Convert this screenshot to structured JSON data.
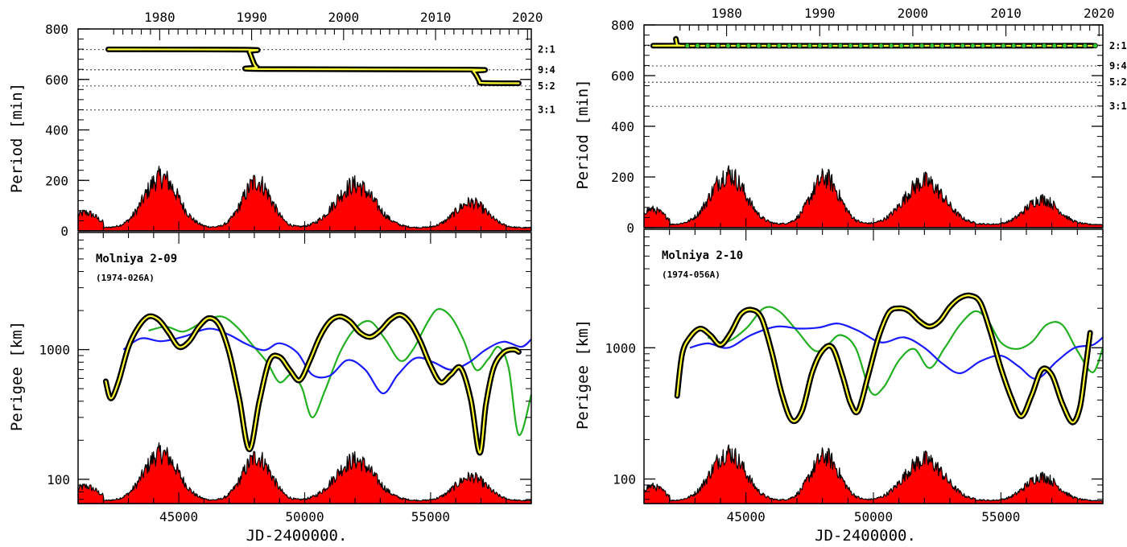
{
  "colors": {
    "solar_fill": "#ff0000",
    "orbit_outline": "#000000",
    "orbit_core": "#ffff33",
    "green_model": "#22b022",
    "blue_model": "#1a1aff",
    "green_marker": "#33cc33"
  },
  "chart_data": [
    {
      "id": "left",
      "type": "line",
      "satellite_name": "Molniya 2-09",
      "cospar_id": "(1974-026A)",
      "x_label": "JD-2400000.",
      "x_range": [
        41000,
        59000
      ],
      "x_ticks": [
        45000,
        50000,
        55000
      ],
      "year_ticks": [
        {
          "label": "1980",
          "jd": 44240
        },
        {
          "label": "1990",
          "jd": 47893
        },
        {
          "label": "2000",
          "jd": 51545
        },
        {
          "label": "2010",
          "jd": 55198
        },
        {
          "label": "2020",
          "jd": 58850
        }
      ],
      "period_panel": {
        "ylabel": "Period [min]",
        "ylim": [
          0,
          800
        ],
        "y_ticks": [
          0,
          200,
          400,
          600,
          800
        ],
        "resonances": [
          {
            "label": "2:1",
            "value": 718
          },
          {
            "label": "9:4",
            "value": 638
          },
          {
            "label": "5:2",
            "value": 574
          },
          {
            "label": "3:1",
            "value": 479
          }
        ],
        "series": [
          {
            "x": [
              42200,
              47700,
              47800,
              47900,
              48000,
              48100,
              48300,
              56500,
              56700,
              56850,
              56950,
              57100,
              58500
            ],
            "y": [
              719,
              718,
              710,
              685,
              660,
              648,
              641,
              639,
              632,
              610,
              592,
              586,
              585
            ]
          }
        ],
        "markers": null
      },
      "perigee_panel": {
        "ylabel": "Perigee [km]",
        "log_scale": true,
        "ylim": [
          65,
          8000
        ],
        "y_ticks": [
          100,
          1000
        ],
        "main_series": {
          "x": [
            42100,
            42300,
            42600,
            43000,
            43400,
            43800,
            44200,
            44600,
            45000,
            45400,
            45800,
            46200,
            46600,
            47000,
            47400,
            47800,
            48200,
            48600,
            49000,
            49400,
            49800,
            50200,
            50600,
            51000,
            51400,
            51800,
            52200,
            52600,
            53000,
            53400,
            53800,
            54200,
            54600,
            55000,
            55400,
            55800,
            56200,
            56600,
            56950,
            57200,
            57500,
            57900,
            58300,
            58500
          ],
          "y": [
            570,
            420,
            560,
            1050,
            1500,
            1800,
            1700,
            1350,
            1050,
            1150,
            1500,
            1750,
            1550,
            950,
            420,
            170,
            400,
            820,
            880,
            700,
            580,
            820,
            1250,
            1650,
            1800,
            1650,
            1350,
            1250,
            1400,
            1700,
            1850,
            1600,
            1150,
            750,
            560,
            640,
            720,
            410,
            160,
            380,
            720,
            950,
            1000,
            960
          ]
        },
        "green_series": {
          "x": [
            43800,
            44500,
            45200,
            46000,
            46700,
            47300,
            47900,
            48500,
            49000,
            49500,
            49900,
            50300,
            50800,
            51400,
            52000,
            52600,
            53200,
            53800,
            54300,
            54900,
            55300,
            55800,
            56300,
            56800,
            57300,
            57700,
            58100,
            58500,
            59000
          ],
          "y": [
            1400,
            1500,
            1380,
            1650,
            1800,
            1500,
            1100,
            800,
            560,
            650,
            500,
            300,
            480,
            950,
            1450,
            1650,
            1200,
            820,
            1000,
            1650,
            2050,
            1800,
            1200,
            700,
            850,
            1050,
            720,
            220,
            450
          ]
        },
        "blue_series": {
          "x": [
            42800,
            43500,
            44300,
            45200,
            46200,
            47000,
            47700,
            48400,
            49000,
            49700,
            50300,
            51000,
            51700,
            52400,
            53100,
            53700,
            54400,
            55100,
            55800,
            56500,
            57200,
            57900,
            58600,
            59000
          ],
          "y": [
            1000,
            1220,
            1160,
            1260,
            1450,
            1300,
            1100,
            990,
            1120,
            950,
            640,
            630,
            830,
            700,
            460,
            640,
            860,
            800,
            700,
            790,
            1000,
            1150,
            1050,
            1200
          ]
        }
      }
    },
    {
      "id": "right",
      "type": "line",
      "satellite_name": "Molniya 2-10",
      "cospar_id": "(1974-056A)",
      "x_label": "JD-2400000.",
      "x_range": [
        41000,
        59000
      ],
      "x_ticks": [
        45000,
        50000,
        55000
      ],
      "year_ticks": [
        {
          "label": "1980",
          "jd": 44240
        },
        {
          "label": "1990",
          "jd": 47893
        },
        {
          "label": "2000",
          "jd": 51545
        },
        {
          "label": "2010",
          "jd": 55198
        },
        {
          "label": "2020",
          "jd": 58850
        }
      ],
      "period_panel": {
        "ylabel": "Period [min]",
        "ylim": [
          0,
          800
        ],
        "y_ticks": [
          0,
          200,
          400,
          600,
          800
        ],
        "resonances": [
          {
            "label": "2:1",
            "value": 718
          },
          {
            "label": "9:4",
            "value": 638
          },
          {
            "label": "5:2",
            "value": 574
          },
          {
            "label": "3:1",
            "value": 479
          }
        ],
        "series": [
          {
            "x": [
              42250,
              42300,
              42400,
              42600,
              58600
            ],
            "y": [
              745,
              722,
              719,
              718,
              718
            ]
          }
        ],
        "markers": {
          "x": [
            42700,
            43100,
            43500,
            43900,
            44300,
            44700,
            45100,
            45500,
            45900,
            46300,
            46700,
            47100,
            47500,
            47900,
            48300,
            48700,
            49100,
            49500,
            49900,
            50300,
            50700,
            51100,
            51500,
            51900,
            52300,
            52700,
            53100,
            53500,
            53900,
            54300,
            54700,
            55100,
            55500,
            55900,
            56300,
            56700,
            57100,
            57500,
            57900,
            58300,
            58700
          ],
          "y": 718
        }
      },
      "perigee_panel": {
        "ylabel": "Perigee [km]",
        "log_scale": true,
        "ylim": [
          65,
          8000
        ],
        "y_ticks": [
          100,
          1000
        ],
        "main_series": {
          "x": [
            42300,
            42500,
            42800,
            43200,
            43600,
            44000,
            44400,
            44800,
            45200,
            45600,
            46000,
            46400,
            46800,
            47200,
            47600,
            48000,
            48400,
            48800,
            49100,
            49400,
            49800,
            50200,
            50600,
            51000,
            51400,
            51800,
            52200,
            52600,
            53000,
            53400,
            53800,
            54200,
            54600,
            55000,
            55400,
            55800,
            56200,
            56600,
            57000,
            57400,
            57800,
            58100,
            58300,
            58500
          ],
          "y": [
            430,
            900,
            1200,
            1400,
            1250,
            1050,
            1300,
            1800,
            1950,
            1700,
            950,
            450,
            280,
            330,
            650,
            950,
            1000,
            600,
            380,
            330,
            620,
            1200,
            1850,
            2000,
            1900,
            1600,
            1450,
            1600,
            2050,
            2400,
            2500,
            2200,
            1300,
            700,
            420,
            300,
            430,
            680,
            620,
            380,
            270,
            350,
            650,
            1300
          ]
        },
        "green_series": {
          "x": [
            43500,
            44200,
            45000,
            45700,
            46300,
            47000,
            47700,
            48200,
            48700,
            49300,
            49900,
            50400,
            51000,
            51600,
            52200,
            52800,
            53400,
            54000,
            54500,
            55000,
            55600,
            56200,
            56800,
            57400,
            58000,
            58600,
            59000
          ],
          "y": [
            1200,
            1100,
            1400,
            2000,
            1900,
            1350,
            950,
            1050,
            1250,
            1000,
            460,
            500,
            800,
            980,
            700,
            1000,
            1500,
            1900,
            1600,
            1100,
            980,
            1100,
            1500,
            1500,
            950,
            650,
            1000
          ]
        },
        "blue_series": {
          "x": [
            42800,
            43500,
            44300,
            45200,
            46200,
            47100,
            47900,
            48600,
            49400,
            50300,
            51200,
            52000,
            52700,
            53400,
            54200,
            55000,
            55700,
            56400,
            57200,
            57900,
            58600,
            59000
          ],
          "y": [
            1000,
            1080,
            1000,
            1250,
            1450,
            1400,
            1430,
            1530,
            1350,
            1100,
            1200,
            1000,
            760,
            640,
            790,
            870,
            720,
            580,
            790,
            1000,
            1050,
            1200
          ]
        }
      }
    }
  ]
}
